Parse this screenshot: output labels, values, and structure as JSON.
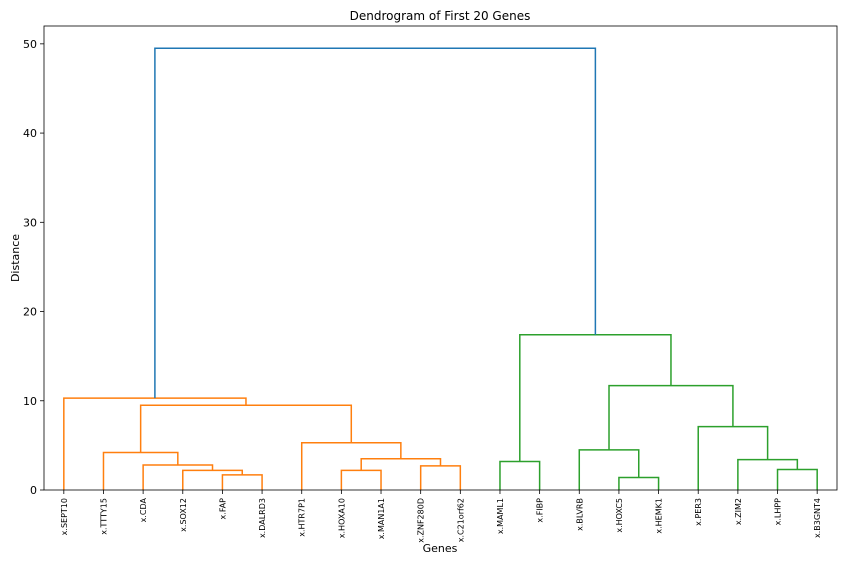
{
  "chart_data": {
    "type": "dendrogram",
    "title": "Dendrogram of First 20 Genes",
    "xlabel": "Genes",
    "ylabel": "Distance",
    "ylim": [
      0,
      52
    ],
    "yticks": [
      0,
      10,
      20,
      30,
      40,
      50
    ],
    "grid": false,
    "leaves": [
      "x.SEPT10",
      "x.TTTY15",
      "x.CDA",
      "x.SOX12",
      "x.FAP",
      "x.DALRD3",
      "x.HTR7P1",
      "x.HOXA10",
      "x.MAN1A1",
      "x.ZNF280D",
      "x.C21orf62",
      "x.MAML1",
      "x.FIBP",
      "x.BLVRB",
      "x.HOXC5",
      "x.HEMK1",
      "x.PER3",
      "x.ZIM2",
      "x.LHPP",
      "x.B3GNT4"
    ],
    "colors": {
      "cluster1": "#ff7f0e",
      "cluster2": "#2ca02c",
      "root": "#1f77b4"
    },
    "merges": [
      {
        "left": "x.FAP",
        "right": "x.DALRD3",
        "height": 1.7,
        "color": "cluster1"
      },
      {
        "left": "x.SOX12",
        "right": "m0",
        "height": 2.2,
        "color": "cluster1"
      },
      {
        "left": "x.CDA",
        "right": "m1",
        "height": 2.8,
        "color": "cluster1"
      },
      {
        "left": "x.TTTY15",
        "right": "m2",
        "height": 4.2,
        "color": "cluster1"
      },
      {
        "left": "x.HOXA10",
        "right": "x.MAN1A1",
        "height": 2.2,
        "color": "cluster1"
      },
      {
        "left": "x.ZNF280D",
        "right": "x.C21orf62",
        "height": 2.7,
        "color": "cluster1"
      },
      {
        "left": "m4",
        "right": "m5",
        "height": 3.5,
        "color": "cluster1"
      },
      {
        "left": "x.HTR7P1",
        "right": "m6",
        "height": 5.3,
        "color": "cluster1"
      },
      {
        "left": "m3",
        "right": "m7",
        "height": 9.5,
        "color": "cluster1"
      },
      {
        "left": "x.SEPT10",
        "right": "m8",
        "height": 10.3,
        "color": "cluster1"
      },
      {
        "left": "x.MAML1",
        "right": "x.FIBP",
        "height": 3.2,
        "color": "cluster2"
      },
      {
        "left": "x.HOXC5",
        "right": "x.HEMK1",
        "height": 1.4,
        "color": "cluster2"
      },
      {
        "left": "x.BLVRB",
        "right": "m11",
        "height": 4.5,
        "color": "cluster2"
      },
      {
        "left": "x.LHPP",
        "right": "x.B3GNT4",
        "height": 2.3,
        "color": "cluster2"
      },
      {
        "left": "x.ZIM2",
        "right": "m13",
        "height": 3.4,
        "color": "cluster2"
      },
      {
        "left": "x.PER3",
        "right": "m14",
        "height": 7.1,
        "color": "cluster2"
      },
      {
        "left": "m12",
        "right": "m15",
        "height": 11.7,
        "color": "cluster2"
      },
      {
        "left": "m10",
        "right": "m16",
        "height": 17.4,
        "color": "cluster2"
      },
      {
        "left": "m9",
        "right": "m17",
        "height": 49.5,
        "color": "root"
      }
    ]
  }
}
